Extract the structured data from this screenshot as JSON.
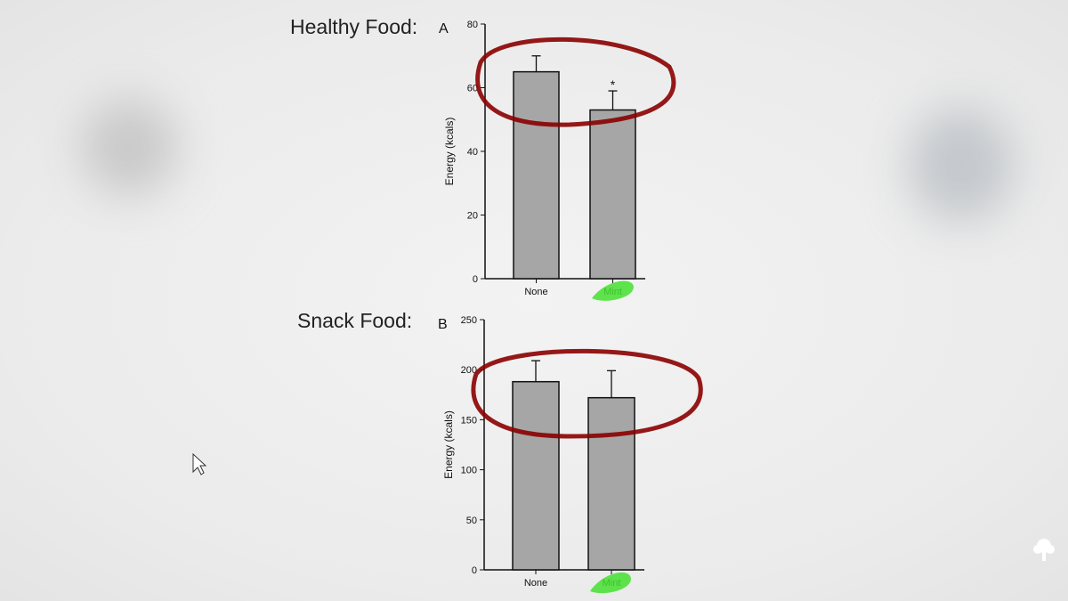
{
  "slide": {
    "label_a": "Healthy Food:",
    "label_b": "Snack Food:",
    "logo_icon": "tree-icon",
    "cursor_icon": "mouse-pointer-icon"
  },
  "annotations": {
    "circle_color": "#8b0000",
    "highlight_color": "#44e030"
  },
  "chart_data": [
    {
      "type": "bar",
      "panel": "A",
      "categories": [
        "None",
        "Mint"
      ],
      "values": [
        65,
        53
      ],
      "error_upper": [
        70,
        59
      ],
      "significance": [
        "",
        "*"
      ],
      "ylabel": "Energy (kcals)",
      "ylim": [
        0,
        80
      ],
      "yticks": [
        0,
        20,
        40,
        60,
        80
      ],
      "bar_color": "#a6a6a6",
      "grid": false
    },
    {
      "type": "bar",
      "panel": "B",
      "categories": [
        "None",
        "Mint"
      ],
      "values": [
        188,
        172
      ],
      "error_upper": [
        209,
        199
      ],
      "significance": [
        "",
        ""
      ],
      "ylabel": "Energy (kcals)",
      "ylim": [
        0,
        250
      ],
      "yticks": [
        0,
        50,
        100,
        150,
        200,
        250
      ],
      "bar_color": "#a6a6a6",
      "grid": false
    }
  ]
}
